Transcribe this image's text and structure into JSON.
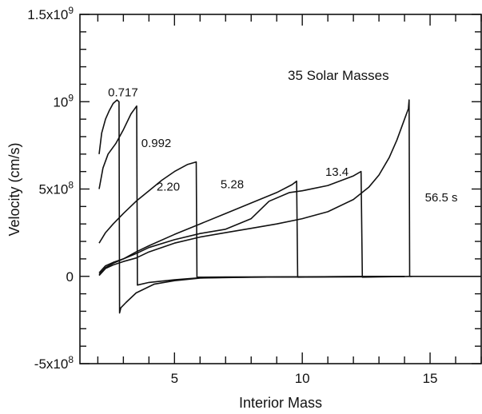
{
  "chart_data": {
    "type": "line",
    "title": "",
    "annotation": "35 Solar Masses",
    "xlabel": "Interior Mass",
    "ylabel": "Velocity (cm/s)",
    "xlim": [
      1.3,
      17
    ],
    "ylim": [
      -500000000,
      1500000000
    ],
    "x_ticks": [
      {
        "value": 5,
        "label": "5"
      },
      {
        "value": 10,
        "label": "10"
      },
      {
        "value": 15,
        "label": "15"
      }
    ],
    "y_ticks": [
      {
        "value": 1500000000,
        "label_base": "1.5x10",
        "label_exp": "9"
      },
      {
        "value": 1000000000,
        "label_base": "10",
        "label_exp": "9"
      },
      {
        "value": 500000000,
        "label_base": "5x10",
        "label_exp": "8"
      },
      {
        "value": 0,
        "label_base": "0",
        "label_exp": ""
      },
      {
        "value": -500000000,
        "label_base": "-5x10",
        "label_exp": "8"
      }
    ],
    "series": [
      {
        "label": "0.717",
        "label_at": [
          2.4,
          1030000000
        ],
        "points": [
          [
            2.05,
            700000000
          ],
          [
            2.15,
            820000000
          ],
          [
            2.3,
            900000000
          ],
          [
            2.45,
            950000000
          ],
          [
            2.6,
            990000000
          ],
          [
            2.75,
            1010000000
          ],
          [
            2.83,
            1000000000
          ],
          [
            2.85,
            -210000000
          ],
          [
            2.9,
            -180000000
          ],
          [
            3.1,
            -150000000
          ],
          [
            3.5,
            -95000000
          ],
          [
            4.2,
            -45000000
          ],
          [
            5,
            -25000000
          ],
          [
            6,
            -10000000
          ],
          [
            8,
            -5000000
          ],
          [
            10,
            -3000000
          ],
          [
            14,
            0
          ]
        ]
      },
      {
        "label": "0.992",
        "label_at": [
          3.7,
          740000000
        ],
        "points": [
          [
            2.05,
            500000000
          ],
          [
            2.2,
            620000000
          ],
          [
            2.4,
            700000000
          ],
          [
            2.7,
            760000000
          ],
          [
            3,
            840000000
          ],
          [
            3.3,
            930000000
          ],
          [
            3.52,
            975000000
          ],
          [
            3.55,
            -50000000
          ],
          [
            4,
            -35000000
          ],
          [
            5,
            -20000000
          ],
          [
            6,
            -8000000
          ],
          [
            8,
            -5000000
          ],
          [
            10,
            -3000000
          ],
          [
            14,
            0
          ]
        ]
      },
      {
        "label": "2.20",
        "label_at": [
          4.3,
          490000000
        ],
        "points": [
          [
            2.05,
            190000000
          ],
          [
            2.3,
            250000000
          ],
          [
            2.6,
            300000000
          ],
          [
            3,
            360000000
          ],
          [
            3.5,
            430000000
          ],
          [
            4,
            490000000
          ],
          [
            4.5,
            550000000
          ],
          [
            5,
            600000000
          ],
          [
            5.5,
            640000000
          ],
          [
            5.85,
            655000000
          ],
          [
            5.88,
            -5000000
          ],
          [
            7,
            -4000000
          ],
          [
            9,
            -3000000
          ],
          [
            14,
            0
          ]
        ]
      },
      {
        "label": "5.28",
        "label_at": [
          6.8,
          505000000
        ],
        "points": [
          [
            2.05,
            20000000
          ],
          [
            2.3,
            60000000
          ],
          [
            2.6,
            80000000
          ],
          [
            3,
            100000000
          ],
          [
            3.5,
            140000000
          ],
          [
            4,
            175000000
          ],
          [
            5,
            240000000
          ],
          [
            6,
            300000000
          ],
          [
            7,
            360000000
          ],
          [
            8,
            420000000
          ],
          [
            9,
            480000000
          ],
          [
            9.6,
            525000000
          ],
          [
            9.78,
            545000000
          ],
          [
            9.82,
            -5000000
          ],
          [
            12,
            -3000000
          ],
          [
            14,
            0
          ]
        ]
      },
      {
        "label": "13.4",
        "label_at": [
          10.9,
          575000000
        ],
        "points": [
          [
            2.05,
            10000000
          ],
          [
            2.3,
            50000000
          ],
          [
            2.6,
            75000000
          ],
          [
            3,
            100000000
          ],
          [
            3.5,
            130000000
          ],
          [
            4,
            165000000
          ],
          [
            5,
            210000000
          ],
          [
            6,
            245000000
          ],
          [
            7,
            270000000
          ],
          [
            8,
            330000000
          ],
          [
            8.7,
            430000000
          ],
          [
            9.5,
            480000000
          ],
          [
            10,
            490000000
          ],
          [
            11,
            520000000
          ],
          [
            12,
            575000000
          ],
          [
            12.3,
            600000000
          ],
          [
            12.35,
            -5000000
          ],
          [
            13,
            -3000000
          ],
          [
            14.3,
            0
          ]
        ]
      },
      {
        "label": "56.5 s",
        "label_at": [
          14.8,
          430000000
        ],
        "points": [
          [
            2.05,
            5000000
          ],
          [
            2.3,
            45000000
          ],
          [
            2.6,
            65000000
          ],
          [
            3,
            85000000
          ],
          [
            3.5,
            105000000
          ],
          [
            4,
            140000000
          ],
          [
            5,
            190000000
          ],
          [
            6,
            225000000
          ],
          [
            7,
            250000000
          ],
          [
            8,
            275000000
          ],
          [
            9,
            300000000
          ],
          [
            10,
            330000000
          ],
          [
            11,
            370000000
          ],
          [
            12,
            440000000
          ],
          [
            12.6,
            510000000
          ],
          [
            13,
            580000000
          ],
          [
            13.4,
            680000000
          ],
          [
            13.7,
            780000000
          ],
          [
            13.9,
            860000000
          ],
          [
            14.05,
            920000000
          ],
          [
            14.15,
            960000000
          ],
          [
            14.18,
            1010000000
          ],
          [
            14.2,
            0
          ],
          [
            14.6,
            0
          ],
          [
            17,
            0
          ]
        ]
      }
    ],
    "grid": false,
    "legend": "none"
  }
}
